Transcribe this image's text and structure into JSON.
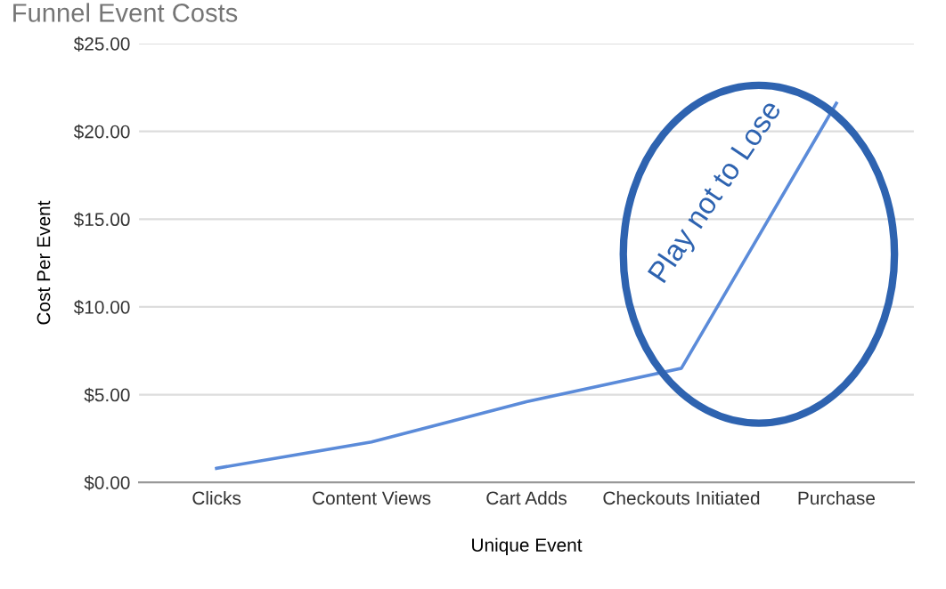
{
  "chart_data": {
    "type": "line",
    "title": "Funnel Event Costs",
    "xlabel": "Unique Event",
    "ylabel": "Cost Per Event",
    "categories": [
      "Clicks",
      "Content Views",
      "Cart Adds",
      "Checkouts Initiated",
      "Purchase"
    ],
    "series": [
      {
        "color": "#5b8bd9",
        "values": [
          0.8,
          2.3,
          4.6,
          6.5,
          21.6
        ]
      }
    ],
    "ylim": [
      0,
      25
    ],
    "yticks": [
      {
        "value": 0,
        "label": "$0.00"
      },
      {
        "value": 5,
        "label": "$5.00"
      },
      {
        "value": 10,
        "label": "$10.00"
      },
      {
        "value": 15,
        "label": "$15.00"
      },
      {
        "value": 20,
        "label": "$20.00"
      },
      {
        "value": 25,
        "label": "$25.00"
      }
    ],
    "grid": "y",
    "legend": false,
    "marker": "none",
    "line_style": "solid",
    "annotations": [
      "Play not to Lose"
    ]
  }
}
